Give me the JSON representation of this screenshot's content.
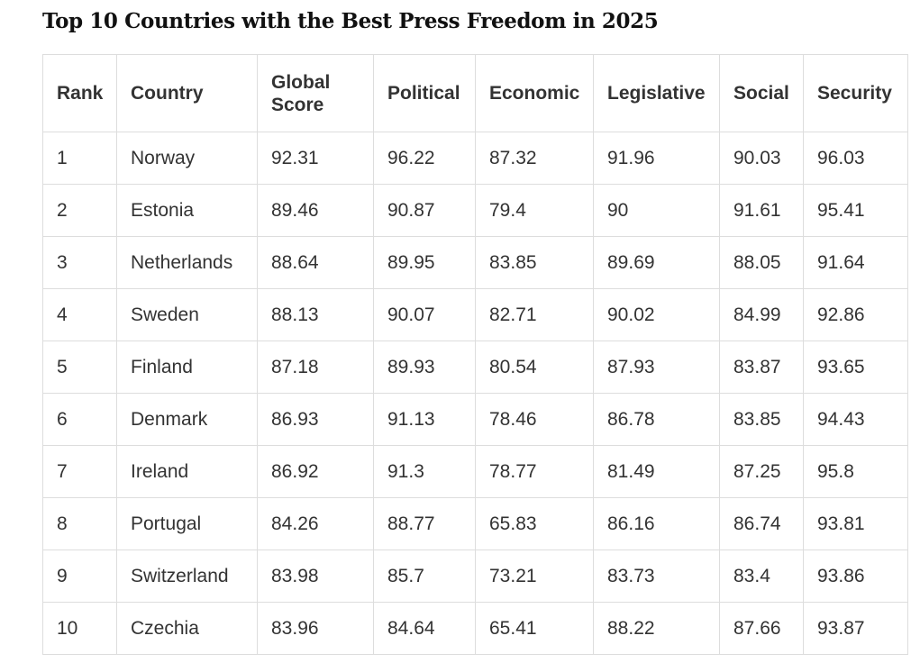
{
  "page": {
    "title": "Top 10 Countries with the Best Press Freedom in 2025"
  },
  "table": {
    "headers": {
      "rank": "Rank",
      "country": "Country",
      "global_score_line1": "Global",
      "global_score_line2": "Score",
      "political": "Political",
      "economic": "Economic",
      "legislative": "Legislative",
      "social": "Social",
      "security": "Security"
    },
    "rows": [
      [
        "1",
        "Norway",
        "92.31",
        "96.22",
        "87.32",
        "91.96",
        "90.03",
        "96.03"
      ],
      [
        "2",
        "Estonia",
        "89.46",
        "90.87",
        "79.4",
        "90",
        "91.61",
        "95.41"
      ],
      [
        "3",
        "Netherlands",
        "88.64",
        "89.95",
        "83.85",
        "89.69",
        "88.05",
        "91.64"
      ],
      [
        "4",
        "Sweden",
        "88.13",
        "90.07",
        "82.71",
        "90.02",
        "84.99",
        "92.86"
      ],
      [
        "5",
        "Finland",
        "87.18",
        "89.93",
        "80.54",
        "87.93",
        "83.87",
        "93.65"
      ],
      [
        "6",
        "Denmark",
        "86.93",
        "91.13",
        "78.46",
        "86.78",
        "83.85",
        "94.43"
      ],
      [
        "7",
        "Ireland",
        "86.92",
        "91.3",
        "78.77",
        "81.49",
        "87.25",
        "95.8"
      ],
      [
        "8",
        "Portugal",
        "84.26",
        "88.77",
        "65.83",
        "86.16",
        "86.74",
        "93.81"
      ],
      [
        "9",
        "Switzerland",
        "83.98",
        "85.7",
        "73.21",
        "83.73",
        "83.4",
        "93.86"
      ],
      [
        "10",
        "Czechia",
        "83.96",
        "84.64",
        "65.41",
        "88.22",
        "87.66",
        "93.87"
      ]
    ]
  }
}
